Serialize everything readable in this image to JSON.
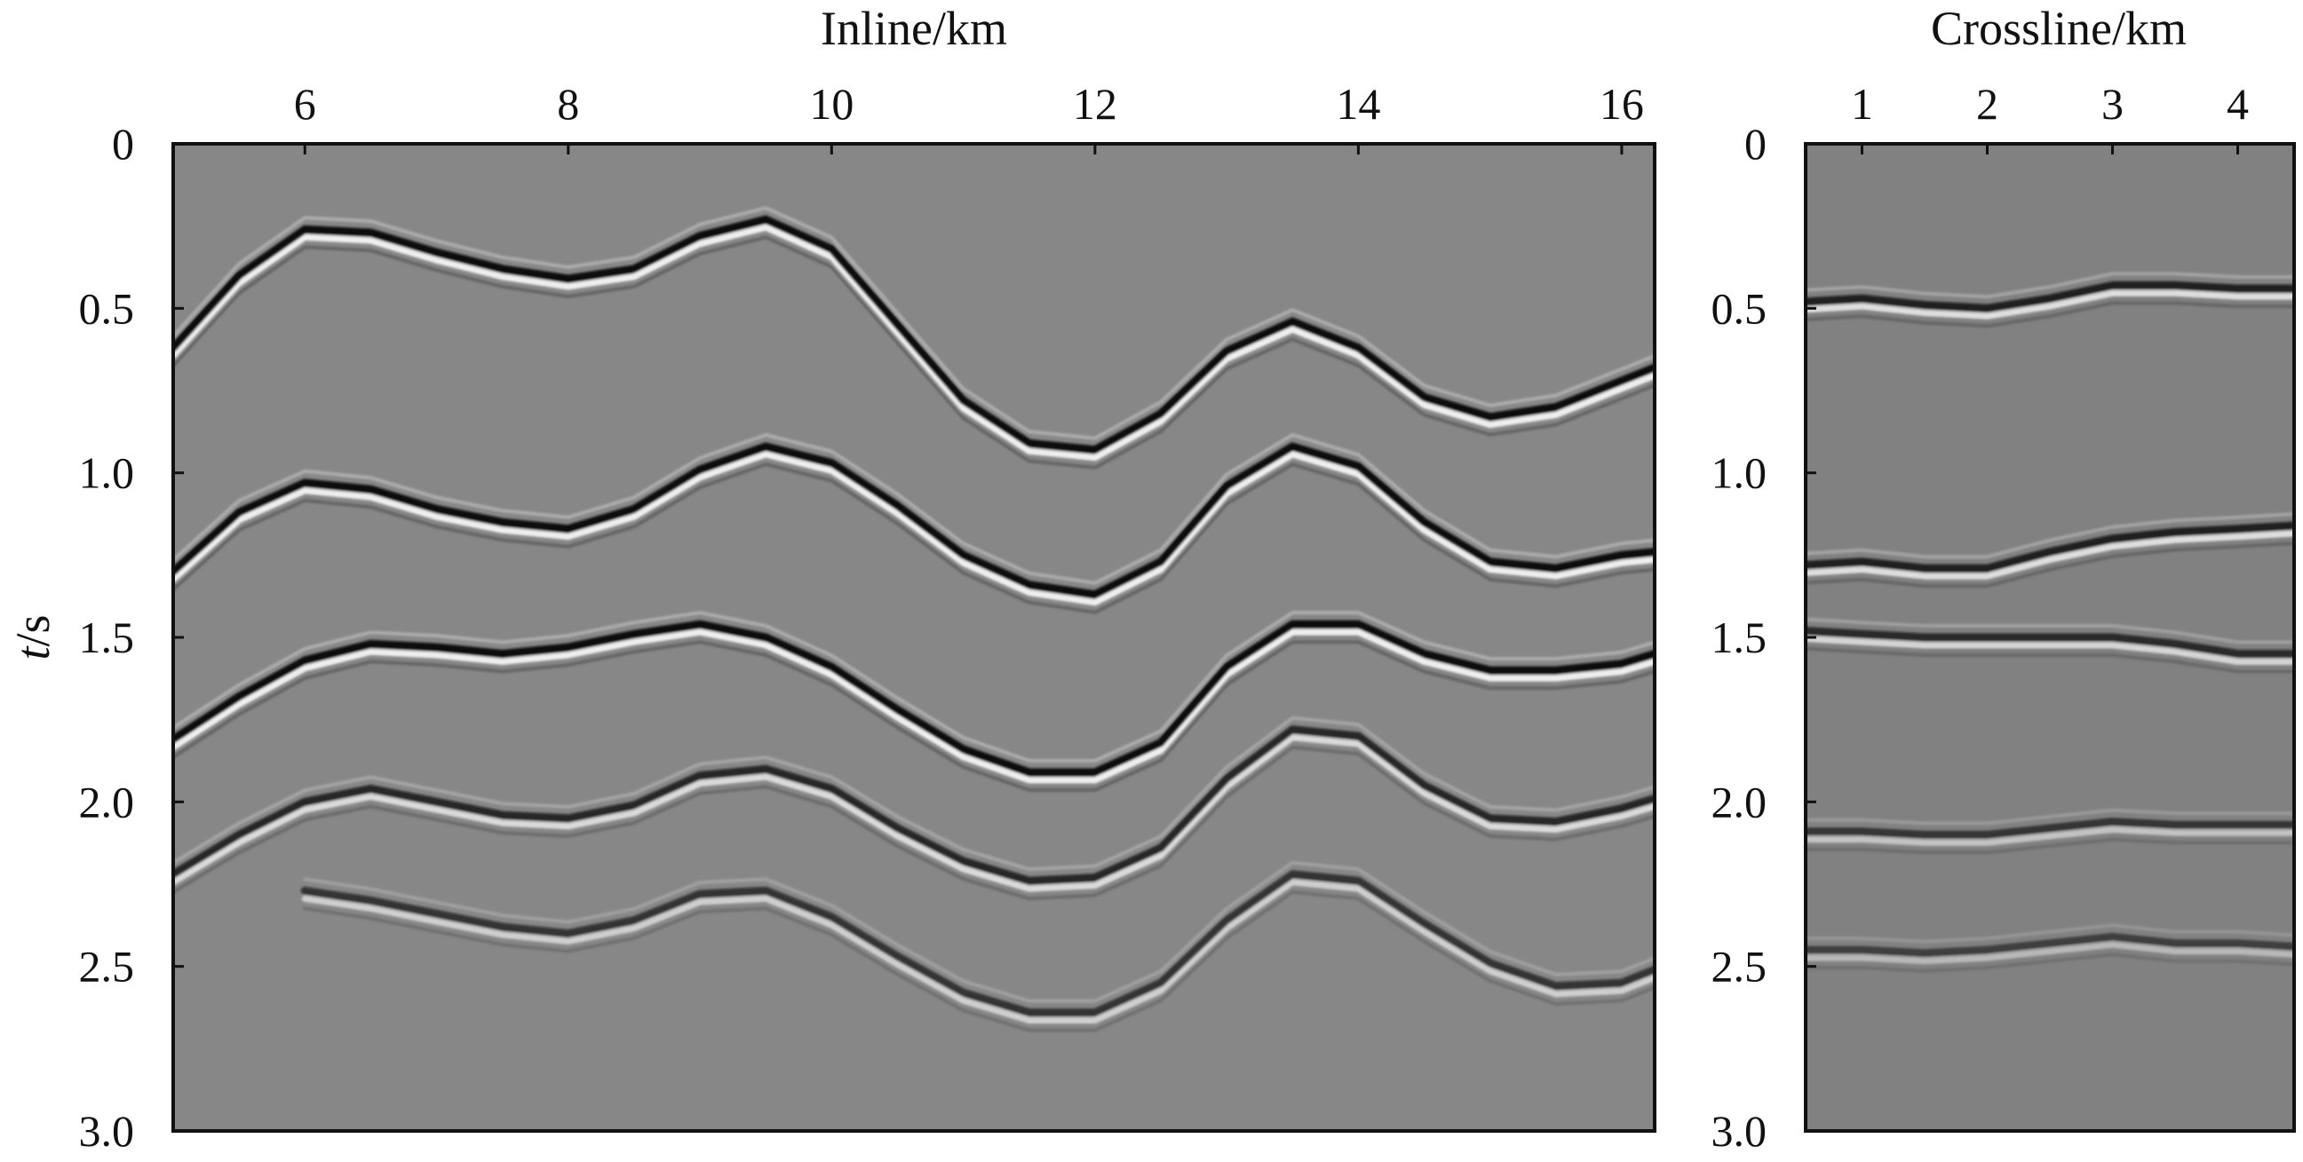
{
  "figure": {
    "ylabel_italic": "t",
    "ylabel_unit": "/s",
    "background_color": "#878787",
    "crossline_background_color": "#818181",
    "trace_color": "#0a0a0a",
    "sidelobe_color": "#f4f4f4"
  },
  "chart_data": [
    {
      "type": "heatmap",
      "name": "inline-section",
      "title": "",
      "xlabel": "Inline/km",
      "ylabel": "t/s",
      "x_axis_position": "top",
      "y_axis_inverted": true,
      "xlim": [
        5.0,
        16.25
      ],
      "ylim": [
        0,
        3.0
      ],
      "x_ticks": [
        6,
        8,
        10,
        12,
        14,
        16
      ],
      "x_tick_labels": [
        "6",
        "8",
        "10",
        "12",
        "14",
        "16"
      ],
      "y_ticks": [
        0,
        0.5,
        1.0,
        1.5,
        2.0,
        2.5,
        3.0
      ],
      "y_tick_labels": [
        "0",
        "0.5",
        "1.0",
        "1.5",
        "2.0",
        "2.5",
        "3.0"
      ],
      "grid": false,
      "reflectors": [
        {
          "strength": 1.0,
          "points": [
            [
              5.0,
              0.62
            ],
            [
              5.5,
              0.4
            ],
            [
              6.0,
              0.26
            ],
            [
              6.5,
              0.27
            ],
            [
              7.0,
              0.33
            ],
            [
              7.5,
              0.38
            ],
            [
              8.0,
              0.41
            ],
            [
              8.5,
              0.38
            ],
            [
              9.0,
              0.28
            ],
            [
              9.5,
              0.23
            ],
            [
              10.0,
              0.32
            ],
            [
              10.5,
              0.55
            ],
            [
              11.0,
              0.78
            ],
            [
              11.5,
              0.91
            ],
            [
              12.0,
              0.93
            ],
            [
              12.5,
              0.82
            ],
            [
              13.0,
              0.63
            ],
            [
              13.5,
              0.54
            ],
            [
              14.0,
              0.62
            ],
            [
              14.5,
              0.77
            ],
            [
              15.0,
              0.83
            ],
            [
              15.5,
              0.8
            ],
            [
              16.0,
              0.72
            ],
            [
              16.25,
              0.68
            ]
          ]
        },
        {
          "strength": 1.0,
          "points": [
            [
              5.0,
              1.3
            ],
            [
              5.5,
              1.12
            ],
            [
              6.0,
              1.03
            ],
            [
              6.5,
              1.05
            ],
            [
              7.0,
              1.11
            ],
            [
              7.5,
              1.15
            ],
            [
              8.0,
              1.17
            ],
            [
              8.5,
              1.11
            ],
            [
              9.0,
              0.99
            ],
            [
              9.5,
              0.92
            ],
            [
              10.0,
              0.97
            ],
            [
              10.5,
              1.1
            ],
            [
              11.0,
              1.25
            ],
            [
              11.5,
              1.34
            ],
            [
              12.0,
              1.37
            ],
            [
              12.5,
              1.27
            ],
            [
              13.0,
              1.04
            ],
            [
              13.5,
              0.92
            ],
            [
              14.0,
              0.98
            ],
            [
              14.5,
              1.15
            ],
            [
              15.0,
              1.27
            ],
            [
              15.5,
              1.29
            ],
            [
              16.0,
              1.25
            ],
            [
              16.25,
              1.24
            ]
          ]
        },
        {
          "strength": 1.0,
          "points": [
            [
              5.0,
              1.81
            ],
            [
              5.5,
              1.68
            ],
            [
              6.0,
              1.57
            ],
            [
              6.5,
              1.52
            ],
            [
              7.0,
              1.53
            ],
            [
              7.5,
              1.55
            ],
            [
              8.0,
              1.53
            ],
            [
              8.5,
              1.49
            ],
            [
              9.0,
              1.46
            ],
            [
              9.5,
              1.5
            ],
            [
              10.0,
              1.59
            ],
            [
              10.5,
              1.72
            ],
            [
              11.0,
              1.84
            ],
            [
              11.5,
              1.91
            ],
            [
              12.0,
              1.91
            ],
            [
              12.5,
              1.82
            ],
            [
              13.0,
              1.59
            ],
            [
              13.5,
              1.46
            ],
            [
              14.0,
              1.46
            ],
            [
              14.5,
              1.55
            ],
            [
              15.0,
              1.6
            ],
            [
              15.5,
              1.6
            ],
            [
              16.0,
              1.58
            ],
            [
              16.25,
              1.55
            ]
          ]
        },
        {
          "strength": 0.8,
          "points": [
            [
              5.0,
              2.22
            ],
            [
              5.5,
              2.1
            ],
            [
              6.0,
              2.0
            ],
            [
              6.5,
              1.96
            ],
            [
              7.0,
              2.0
            ],
            [
              7.5,
              2.04
            ],
            [
              8.0,
              2.05
            ],
            [
              8.5,
              2.01
            ],
            [
              9.0,
              1.92
            ],
            [
              9.5,
              1.9
            ],
            [
              10.0,
              1.96
            ],
            [
              10.5,
              2.08
            ],
            [
              11.0,
              2.18
            ],
            [
              11.5,
              2.24
            ],
            [
              12.0,
              2.23
            ],
            [
              12.5,
              2.14
            ],
            [
              13.0,
              1.93
            ],
            [
              13.5,
              1.78
            ],
            [
              14.0,
              1.8
            ],
            [
              14.5,
              1.95
            ],
            [
              15.0,
              2.05
            ],
            [
              15.5,
              2.06
            ],
            [
              16.0,
              2.02
            ],
            [
              16.25,
              1.99
            ]
          ]
        },
        {
          "strength": 0.7,
          "points": [
            [
              6.0,
              2.27
            ],
            [
              6.5,
              2.3
            ],
            [
              7.0,
              2.34
            ],
            [
              7.5,
              2.38
            ],
            [
              8.0,
              2.4
            ],
            [
              8.5,
              2.36
            ],
            [
              9.0,
              2.28
            ],
            [
              9.5,
              2.27
            ],
            [
              10.0,
              2.35
            ],
            [
              10.5,
              2.47
            ],
            [
              11.0,
              2.58
            ],
            [
              11.5,
              2.64
            ],
            [
              12.0,
              2.64
            ],
            [
              12.5,
              2.55
            ],
            [
              13.0,
              2.36
            ],
            [
              13.5,
              2.22
            ],
            [
              14.0,
              2.24
            ],
            [
              14.5,
              2.37
            ],
            [
              15.0,
              2.49
            ],
            [
              15.5,
              2.56
            ],
            [
              16.0,
              2.55
            ],
            [
              16.25,
              2.51
            ]
          ]
        }
      ]
    },
    {
      "type": "heatmap",
      "name": "crossline-section",
      "title": "",
      "xlabel": "Crossline/km",
      "ylabel": "",
      "x_axis_position": "top",
      "y_axis_inverted": true,
      "xlim": [
        0.55,
        4.45
      ],
      "ylim": [
        0,
        3.0
      ],
      "x_ticks": [
        1,
        2,
        3,
        4
      ],
      "x_tick_labels": [
        "1",
        "2",
        "3",
        "4"
      ],
      "y_ticks": [
        0,
        0.5,
        1.0,
        1.5,
        2.0,
        2.5,
        3.0
      ],
      "y_tick_labels": [
        "0",
        "0.5",
        "1.0",
        "1.5",
        "2.0",
        "2.5",
        "3.0"
      ],
      "grid": false,
      "reflectors": [
        {
          "strength": 1.0,
          "points": [
            [
              0.55,
              0.48
            ],
            [
              1.0,
              0.47
            ],
            [
              1.5,
              0.49
            ],
            [
              2.0,
              0.5
            ],
            [
              2.5,
              0.47
            ],
            [
              3.0,
              0.43
            ],
            [
              3.5,
              0.43
            ],
            [
              4.0,
              0.44
            ],
            [
              4.45,
              0.44
            ]
          ]
        },
        {
          "strength": 1.0,
          "points": [
            [
              0.55,
              1.28
            ],
            [
              1.0,
              1.27
            ],
            [
              1.5,
              1.29
            ],
            [
              2.0,
              1.29
            ],
            [
              2.5,
              1.24
            ],
            [
              3.0,
              1.2
            ],
            [
              3.5,
              1.18
            ],
            [
              4.0,
              1.17
            ],
            [
              4.45,
              1.16
            ]
          ]
        },
        {
          "strength": 0.9,
          "points": [
            [
              0.55,
              1.48
            ],
            [
              1.0,
              1.49
            ],
            [
              1.5,
              1.5
            ],
            [
              2.0,
              1.5
            ],
            [
              2.5,
              1.5
            ],
            [
              3.0,
              1.5
            ],
            [
              3.5,
              1.52
            ],
            [
              4.0,
              1.55
            ],
            [
              4.45,
              1.55
            ]
          ]
        },
        {
          "strength": 0.7,
          "points": [
            [
              0.55,
              2.09
            ],
            [
              1.0,
              2.09
            ],
            [
              1.5,
              2.1
            ],
            [
              2.0,
              2.1
            ],
            [
              2.5,
              2.08
            ],
            [
              3.0,
              2.06
            ],
            [
              3.5,
              2.07
            ],
            [
              4.0,
              2.07
            ],
            [
              4.45,
              2.07
            ]
          ]
        },
        {
          "strength": 0.6,
          "points": [
            [
              0.55,
              2.45
            ],
            [
              1.0,
              2.45
            ],
            [
              1.5,
              2.46
            ],
            [
              2.0,
              2.45
            ],
            [
              2.5,
              2.43
            ],
            [
              3.0,
              2.41
            ],
            [
              3.5,
              2.43
            ],
            [
              4.0,
              2.43
            ],
            [
              4.45,
              2.44
            ]
          ]
        }
      ]
    }
  ]
}
